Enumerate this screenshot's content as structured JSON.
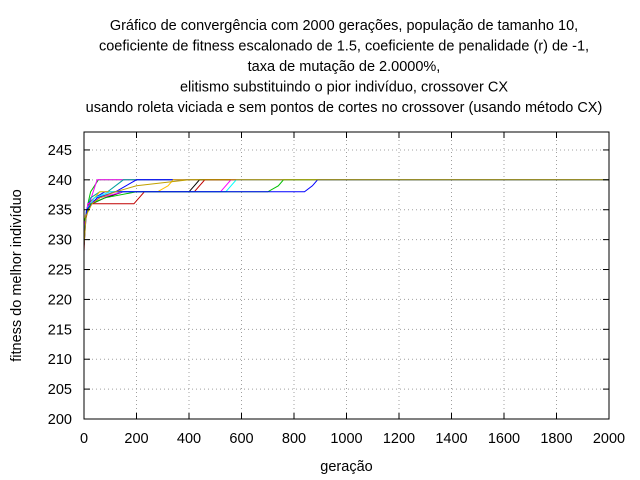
{
  "chart_data": {
    "type": "line",
    "title_lines": [
      "Gráfico de convergência com 2000 gerações, população de tamanho 10,",
      "coeficiente de fitness escalonado de 1.5, coeficiente de penalidade (r) de -1,",
      "taxa de mutação de 2.0000%,",
      "elitismo substituindo o pior indivíduo, crossover CX",
      "usando roleta viciada e sem pontos de cortes no crossover (usando método CX)"
    ],
    "xlabel": "geração",
    "ylabel": "fitness do melhor indivíduo",
    "xlim": [
      0,
      2000
    ],
    "ylim": [
      200,
      248
    ],
    "xticks": [
      0,
      200,
      400,
      600,
      800,
      1000,
      1200,
      1400,
      1600,
      1800,
      2000
    ],
    "yticks": [
      200,
      205,
      210,
      215,
      220,
      225,
      230,
      235,
      240,
      245
    ],
    "grid": true,
    "legend": "none",
    "series": [
      {
        "color": "#00c000",
        "x": [
          0,
          5,
          15,
          25,
          40,
          55,
          2000
        ],
        "y": [
          229,
          233,
          236,
          238,
          239,
          240,
          240
        ]
      },
      {
        "color": "#ff00ff",
        "x": [
          0,
          8,
          20,
          35,
          50,
          2000
        ],
        "y": [
          230,
          234,
          236,
          238,
          240,
          240
        ]
      },
      {
        "color": "#00a0a0",
        "x": [
          0,
          10,
          25,
          60,
          90,
          120,
          150,
          2000
        ],
        "y": [
          231,
          235,
          237,
          238,
          238,
          239,
          240,
          240
        ]
      },
      {
        "color": "#0000ff",
        "x": [
          0,
          15,
          40,
          80,
          120,
          160,
          200,
          260,
          300,
          2000
        ],
        "y": [
          232,
          236,
          237,
          238,
          238,
          239,
          240,
          240,
          240,
          240
        ]
      },
      {
        "color": "#ffc000",
        "x": [
          0,
          5,
          20,
          60,
          100,
          200,
          280,
          320,
          340,
          360,
          2000
        ],
        "y": [
          229,
          234,
          236,
          238,
          238,
          238,
          238,
          239,
          240,
          240,
          240
        ]
      },
      {
        "color": "#000000",
        "x": [
          0,
          10,
          30,
          80,
          150,
          200,
          230,
          300,
          400,
          420,
          440,
          2000
        ],
        "y": [
          231,
          235,
          236,
          237,
          238,
          238,
          238,
          238,
          238,
          239,
          240,
          240
        ]
      },
      {
        "color": "#c00000",
        "x": [
          0,
          5,
          20,
          100,
          190,
          210,
          230,
          300,
          420,
          440,
          460,
          2000
        ],
        "y": [
          228,
          233,
          236,
          236,
          236,
          237,
          238,
          238,
          238,
          239,
          240,
          240
        ]
      },
      {
        "color": "#ff00ff",
        "x": [
          0,
          15,
          60,
          150,
          300,
          470,
          520,
          560,
          2000
        ],
        "y": [
          232,
          236,
          237,
          238,
          238,
          238,
          238,
          240,
          240
        ]
      },
      {
        "color": "#00ffff",
        "x": [
          0,
          10,
          40,
          100,
          200,
          400,
          540,
          560,
          580,
          2000
        ],
        "y": [
          230,
          235,
          237,
          238,
          238,
          238,
          238,
          239,
          240,
          240
        ]
      },
      {
        "color": "#00c000",
        "x": [
          0,
          25,
          80,
          200,
          400,
          620,
          700,
          740,
          760,
          2000
        ],
        "y": [
          233,
          236,
          237,
          238,
          238,
          238,
          238,
          239,
          240,
          240
        ]
      },
      {
        "color": "#0000ff",
        "x": [
          0,
          10,
          50,
          120,
          300,
          600,
          840,
          870,
          890,
          2000
        ],
        "y": [
          229,
          235,
          237,
          238,
          238,
          238,
          238,
          239,
          240,
          240
        ]
      },
      {
        "color": "#c0a000",
        "x": [
          0,
          8,
          30,
          60,
          120,
          200,
          400,
          900,
          2000
        ],
        "y": [
          229,
          234,
          236,
          237,
          238,
          239,
          240,
          240,
          240
        ]
      }
    ]
  }
}
